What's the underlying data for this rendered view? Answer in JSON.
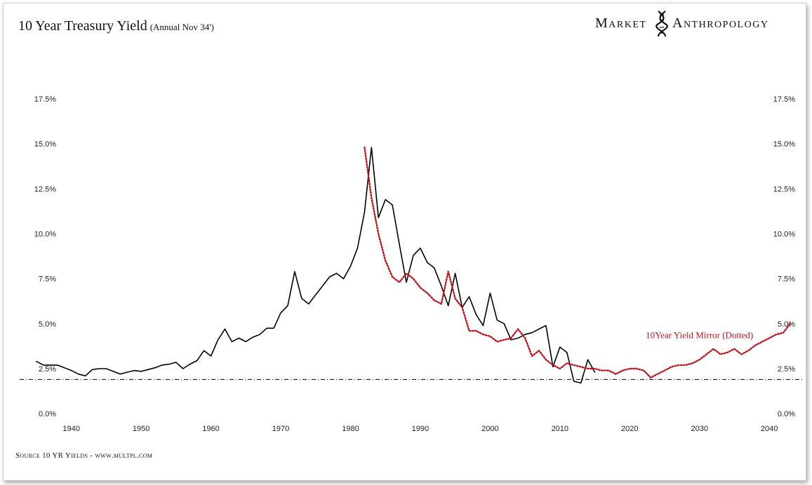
{
  "header": {
    "title": "10 Year Treasury Yield",
    "subtitle": "(Annual Nov 34')"
  },
  "brand": {
    "word1": "Market",
    "word2": "Anthropology",
    "logo_icon": "dna-helix-icon"
  },
  "footer": {
    "source": "Source 10 YR Yields - www.multpl.com"
  },
  "colors": {
    "actual_line": "#000000",
    "mirror_line": "#c0111a",
    "baseline": "#000000"
  },
  "chart_data": {
    "type": "line",
    "title": "10 Year Treasury Yield",
    "subtitle": "(Annual Nov 34')",
    "xlabel": "",
    "ylabel": "",
    "xlim": [
      1934,
      2043
    ],
    "ylim": [
      -0.5,
      17.5
    ],
    "y_ticks": [
      0,
      2.5,
      5,
      7.5,
      10,
      12.5,
      15,
      17.5
    ],
    "y_tick_labels": [
      "0.0%",
      "2.5%",
      "5.0%",
      "7.5%",
      "10.0%",
      "12.5%",
      "15.0%",
      "17.5%"
    ],
    "x_ticks": [
      1940,
      1950,
      1960,
      1970,
      1980,
      1990,
      2000,
      2010,
      2020,
      2030,
      2040
    ],
    "x_tick_labels": [
      "1940",
      "1950",
      "1960",
      "1970",
      "1980",
      "1990",
      "2000",
      "2010",
      "2020",
      "2030",
      "2040"
    ],
    "reference_line": {
      "y": 1.9,
      "style": "dash-dot"
    },
    "annotation": {
      "text": "10Year Yield Mirror (Dotted)",
      "x": 2030,
      "y": 4.2
    },
    "legend": "none",
    "grid": false,
    "series": [
      {
        "name": "10 Year Treasury Yield",
        "style": "solid",
        "x": [
          1935,
          1936,
          1937,
          1938,
          1939,
          1940,
          1941,
          1942,
          1943,
          1944,
          1945,
          1946,
          1947,
          1948,
          1949,
          1950,
          1951,
          1952,
          1953,
          1954,
          1955,
          1956,
          1957,
          1958,
          1959,
          1960,
          1961,
          1962,
          1963,
          1964,
          1965,
          1966,
          1967,
          1968,
          1969,
          1970,
          1971,
          1972,
          1973,
          1974,
          1975,
          1976,
          1977,
          1978,
          1979,
          1980,
          1981,
          1982,
          1983,
          1984,
          1985,
          1986,
          1987,
          1988,
          1989,
          1990,
          1991,
          1992,
          1993,
          1994,
          1995,
          1996,
          1997,
          1998,
          1999,
          2000,
          2001,
          2002,
          2003,
          2004,
          2005,
          2006,
          2007,
          2008,
          2009,
          2010,
          2011,
          2012,
          2013,
          2014,
          2015
        ],
        "values": [
          2.9,
          2.7,
          2.7,
          2.7,
          2.55,
          2.4,
          2.2,
          2.1,
          2.45,
          2.5,
          2.5,
          2.35,
          2.2,
          2.3,
          2.4,
          2.35,
          2.45,
          2.55,
          2.7,
          2.75,
          2.85,
          2.5,
          2.75,
          2.95,
          3.5,
          3.2,
          4.1,
          4.7,
          4.0,
          4.2,
          4.0,
          4.25,
          4.4,
          4.75,
          4.75,
          5.6,
          6.0,
          7.9,
          6.4,
          6.1,
          6.6,
          7.1,
          7.6,
          7.8,
          7.5,
          8.2,
          9.2,
          11.2,
          14.8,
          10.9,
          11.9,
          11.6,
          9.4,
          7.3,
          8.8,
          9.2,
          8.4,
          8.1,
          7.1,
          6.0,
          7.8,
          5.9,
          6.5,
          5.5,
          4.9,
          6.7,
          5.2,
          5.0,
          4.1,
          4.2,
          4.4,
          4.5,
          4.7,
          4.9,
          2.6,
          3.7,
          3.4,
          1.8,
          1.7,
          3.0,
          2.3
        ]
      },
      {
        "name": "10Year Yield Mirror (Dotted)",
        "style": "dotted",
        "x": [
          1982,
          1983,
          1984,
          1985,
          1986,
          1987,
          1988,
          1989,
          1990,
          1991,
          1992,
          1993,
          1994,
          1995,
          1996,
          1997,
          1998,
          1999,
          2000,
          2001,
          2002,
          2003,
          2004,
          2005,
          2006,
          2007,
          2008,
          2009,
          2010,
          2011,
          2012,
          2013,
          2014,
          2015,
          2016,
          2017,
          2018,
          2019,
          2020,
          2021,
          2022,
          2023,
          2024,
          2025,
          2026,
          2027,
          2028,
          2029,
          2030,
          2031,
          2032,
          2033,
          2034,
          2035,
          2036,
          2037,
          2038,
          2039,
          2040,
          2041,
          2042,
          2043
        ],
        "values": [
          14.8,
          12.0,
          10.0,
          8.5,
          7.6,
          7.3,
          7.8,
          7.5,
          7.0,
          6.7,
          6.3,
          6.1,
          7.9,
          6.4,
          5.9,
          4.6,
          4.6,
          4.4,
          4.3,
          4.0,
          4.1,
          4.2,
          4.7,
          4.2,
          3.2,
          3.5,
          3.0,
          2.7,
          2.5,
          2.8,
          2.7,
          2.6,
          2.5,
          2.5,
          2.4,
          2.4,
          2.2,
          2.4,
          2.5,
          2.5,
          2.4,
          2.0,
          2.2,
          2.4,
          2.6,
          2.7,
          2.7,
          2.8,
          3.0,
          3.3,
          3.6,
          3.3,
          3.4,
          3.6,
          3.3,
          3.5,
          3.8,
          4.0,
          4.2,
          4.4,
          4.5,
          5.0
        ]
      }
    ]
  }
}
